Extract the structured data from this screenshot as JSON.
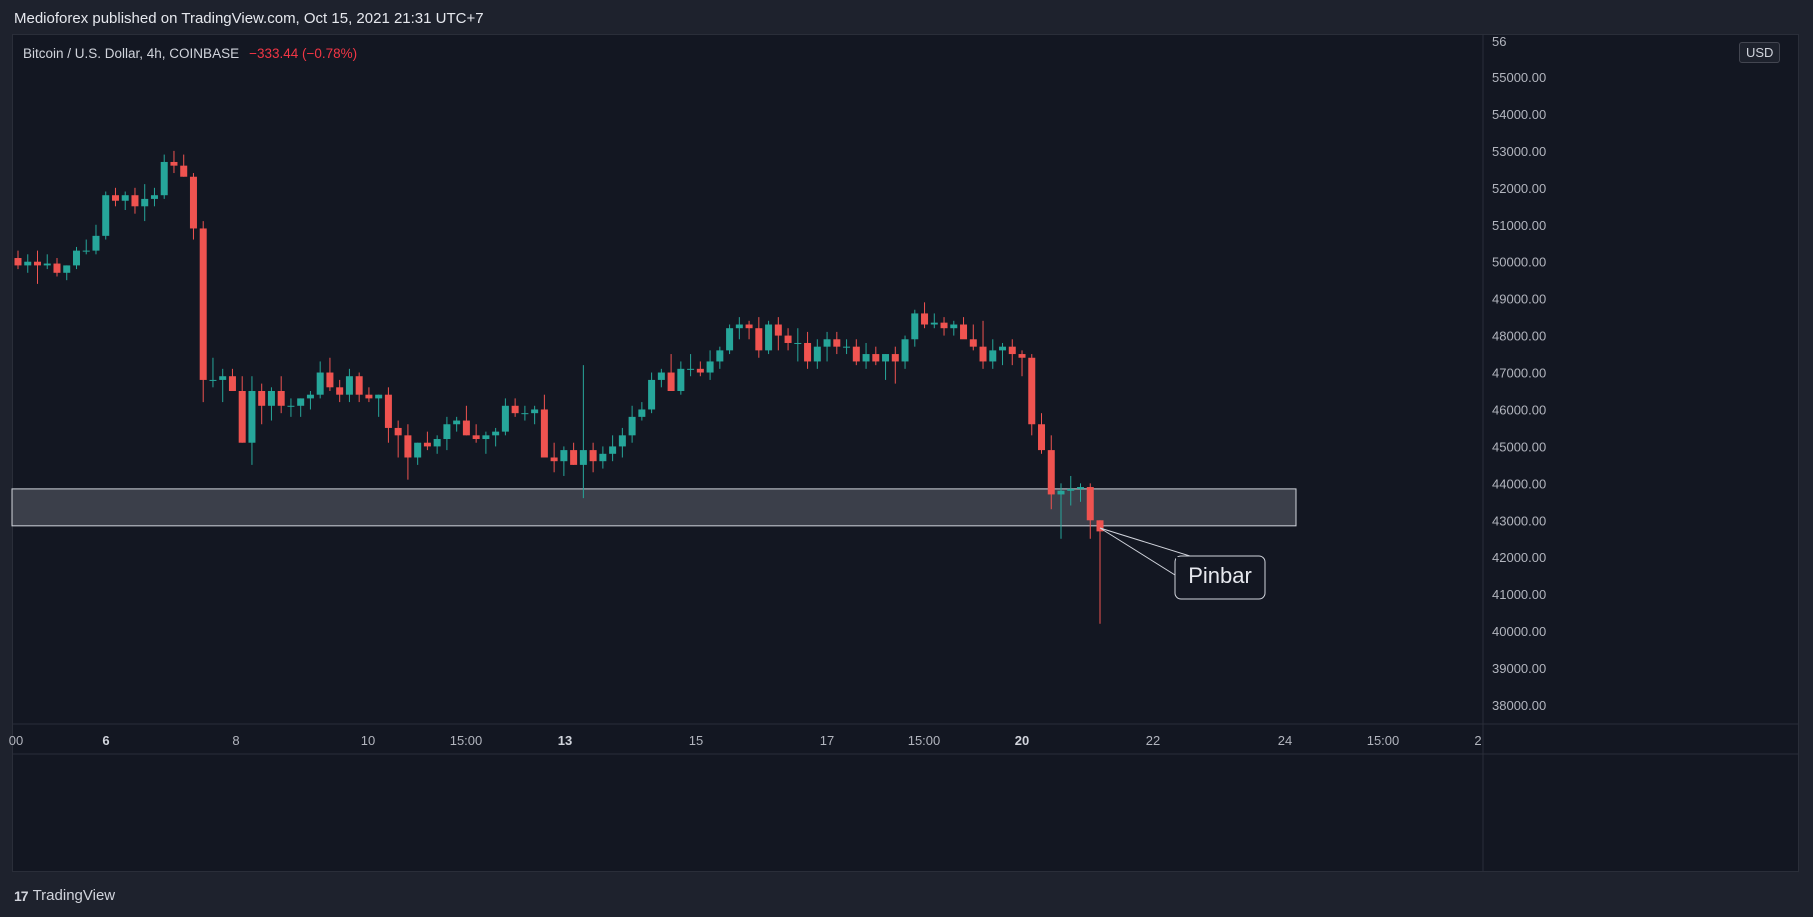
{
  "header": {
    "published_line": "Medioforex published on TradingView.com, Oct 15, 2021 21:31 UTC+7"
  },
  "symbol": {
    "name": "Bitcoin / U.S. Dollar, 4h, COINBASE",
    "change": "−333.44 (−0.78%)"
  },
  "currency_badge": "USD",
  "footer": {
    "brand": "TradingView"
  },
  "colors": {
    "up": "#26a69a",
    "down": "#ef5350",
    "background": "#131722",
    "zone_fill": "#434651"
  },
  "annotation": {
    "label": "Pinbar"
  },
  "chart_data": {
    "type": "candlestick",
    "symbol": "BTCUSD",
    "interval": "4h",
    "y_axis": {
      "ticks": [
        "55000.00",
        "54000.00",
        "53000.00",
        "52000.00",
        "51000.00",
        "50000.00",
        "49000.00",
        "48000.00",
        "47000.00",
        "46000.00",
        "45000.00",
        "44000.00",
        "43000.00",
        "42000.00",
        "41000.00",
        "40000.00",
        "39000.00",
        "38000.00"
      ],
      "tick_values": [
        55000,
        54000,
        53000,
        52000,
        51000,
        50000,
        49000,
        48000,
        47000,
        46000,
        45000,
        44000,
        43000,
        42000,
        41000,
        40000,
        39000,
        38000
      ],
      "top_partial_label": "56",
      "range": [
        37400,
        56400
      ]
    },
    "x_axis": {
      "ticks": [
        {
          "label": "00",
          "bold": false
        },
        {
          "label": "6",
          "bold": true
        },
        {
          "label": "8",
          "bold": false
        },
        {
          "label": "10",
          "bold": false
        },
        {
          "label": "15:00",
          "bold": false
        },
        {
          "label": "13",
          "bold": true
        },
        {
          "label": "15",
          "bold": false
        },
        {
          "label": "17",
          "bold": false
        },
        {
          "label": "15:00",
          "bold": false
        },
        {
          "label": "20",
          "bold": true
        },
        {
          "label": "22",
          "bold": false
        },
        {
          "label": "24",
          "bold": false
        },
        {
          "label": "15:00",
          "bold": false
        },
        {
          "label": "2",
          "bold": false
        }
      ]
    },
    "zone": {
      "low": 42850,
      "high": 43850
    },
    "candles": [
      [
        50100,
        50300,
        49800,
        49900
      ],
      [
        49900,
        50200,
        49700,
        50000
      ],
      [
        50000,
        50300,
        49400,
        49900
      ],
      [
        49900,
        50200,
        49800,
        49950
      ],
      [
        49950,
        50100,
        49600,
        49700
      ],
      [
        49700,
        49900,
        49500,
        49900
      ],
      [
        49900,
        50400,
        49800,
        50300
      ],
      [
        50300,
        50600,
        50200,
        50300
      ],
      [
        50300,
        51000,
        50200,
        50700
      ],
      [
        50700,
        51900,
        50600,
        51800
      ],
      [
        51800,
        52000,
        51500,
        51650
      ],
      [
        51650,
        51900,
        51400,
        51800
      ],
      [
        51800,
        52000,
        51300,
        51500
      ],
      [
        51500,
        52100,
        51100,
        51700
      ],
      [
        51700,
        52000,
        51500,
        51800
      ],
      [
        51800,
        52900,
        51700,
        52700
      ],
      [
        52700,
        53000,
        52400,
        52600
      ],
      [
        52600,
        52900,
        52300,
        52300
      ],
      [
        52300,
        52400,
        50600,
        50900
      ],
      [
        50900,
        51100,
        46200,
        46800
      ],
      [
        46800,
        47400,
        46600,
        46800
      ],
      [
        46800,
        47100,
        46200,
        46900
      ],
      [
        46900,
        47100,
        46600,
        46500
      ],
      [
        46500,
        46900,
        45100,
        45100
      ],
      [
        45100,
        46900,
        44500,
        46500
      ],
      [
        46500,
        46700,
        45600,
        46100
      ],
      [
        46100,
        46600,
        45700,
        46500
      ],
      [
        46500,
        46900,
        45900,
        46100
      ],
      [
        46100,
        46300,
        45800,
        46100
      ],
      [
        46100,
        46300,
        45800,
        46300
      ],
      [
        46300,
        46500,
        46000,
        46400
      ],
      [
        46400,
        47300,
        46300,
        47000
      ],
      [
        47000,
        47400,
        46500,
        46600
      ],
      [
        46600,
        46800,
        46200,
        46400
      ],
      [
        46400,
        47100,
        46200,
        46900
      ],
      [
        46900,
        47000,
        46200,
        46400
      ],
      [
        46400,
        46600,
        46200,
        46300
      ],
      [
        46300,
        46400,
        45800,
        46400
      ],
      [
        46400,
        46600,
        45100,
        45500
      ],
      [
        45500,
        45700,
        44700,
        45300
      ],
      [
        45300,
        45600,
        44100,
        44700
      ],
      [
        44700,
        45100,
        44500,
        45100
      ],
      [
        45100,
        45400,
        44900,
        45000
      ],
      [
        45000,
        45300,
        44800,
        45200
      ],
      [
        45200,
        45800,
        44900,
        45600
      ],
      [
        45600,
        45800,
        45400,
        45700
      ],
      [
        45700,
        46100,
        45300,
        45300
      ],
      [
        45300,
        45600,
        45100,
        45200
      ],
      [
        45200,
        45400,
        44800,
        45300
      ],
      [
        45300,
        45500,
        45000,
        45400
      ],
      [
        45400,
        46300,
        45300,
        46100
      ],
      [
        46100,
        46300,
        45800,
        45900
      ],
      [
        45900,
        46100,
        45700,
        45900
      ],
      [
        45900,
        46100,
        45600,
        46000
      ],
      [
        46000,
        46400,
        44700,
        44700
      ],
      [
        44700,
        45100,
        44300,
        44600
      ],
      [
        44600,
        45000,
        44200,
        44900
      ],
      [
        44900,
        45100,
        44500,
        44500
      ],
      [
        44500,
        47200,
        43600,
        44900
      ],
      [
        44900,
        45100,
        44300,
        44600
      ],
      [
        44600,
        45000,
        44400,
        44800
      ],
      [
        44800,
        45300,
        44600,
        45000
      ],
      [
        45000,
        45500,
        44700,
        45300
      ],
      [
        45300,
        46100,
        45100,
        45800
      ],
      [
        45800,
        46200,
        45700,
        46000
      ],
      [
        46000,
        47000,
        45900,
        46800
      ],
      [
        46800,
        47100,
        46600,
        47000
      ],
      [
        47000,
        47500,
        46500,
        46500
      ],
      [
        46500,
        47300,
        46400,
        47100
      ],
      [
        47100,
        47500,
        46900,
        47100
      ],
      [
        47100,
        47300,
        46900,
        47000
      ],
      [
        47000,
        47600,
        46800,
        47300
      ],
      [
        47300,
        47700,
        47100,
        47600
      ],
      [
        47600,
        48300,
        47500,
        48200
      ],
      [
        48200,
        48500,
        47900,
        48300
      ],
      [
        48300,
        48400,
        47900,
        48200
      ],
      [
        48200,
        48500,
        47400,
        47600
      ],
      [
        47600,
        48400,
        47500,
        48300
      ],
      [
        48300,
        48500,
        47600,
        48000
      ],
      [
        48000,
        48200,
        47600,
        47800
      ],
      [
        47800,
        48200,
        47300,
        47800
      ],
      [
        47800,
        48100,
        47100,
        47300
      ],
      [
        47300,
        47900,
        47100,
        47700
      ],
      [
        47700,
        48100,
        47300,
        47900
      ],
      [
        47900,
        48100,
        47500,
        47700
      ],
      [
        47700,
        47900,
        47500,
        47700
      ],
      [
        47700,
        47900,
        47200,
        47300
      ],
      [
        47300,
        47800,
        47100,
        47500
      ],
      [
        47500,
        47700,
        47200,
        47300
      ],
      [
        47300,
        47500,
        46800,
        47500
      ],
      [
        47500,
        47700,
        46700,
        47300
      ],
      [
        47300,
        48000,
        47100,
        47900
      ],
      [
        47900,
        48700,
        47700,
        48600
      ],
      [
        48600,
        48900,
        48200,
        48300
      ],
      [
        48300,
        48600,
        48200,
        48350
      ],
      [
        48350,
        48500,
        48000,
        48200
      ],
      [
        48200,
        48400,
        48000,
        48300
      ],
      [
        48300,
        48500,
        48000,
        47900
      ],
      [
        47900,
        48300,
        47600,
        47700
      ],
      [
        47700,
        48400,
        47100,
        47300
      ],
      [
        47300,
        47900,
        47100,
        47600
      ],
      [
        47600,
        47800,
        47200,
        47700
      ],
      [
        47700,
        47900,
        47200,
        47500
      ],
      [
        47500,
        47600,
        46900,
        47400
      ],
      [
        47400,
        47500,
        45300,
        45600
      ],
      [
        45600,
        45900,
        44800,
        44900
      ],
      [
        44900,
        45300,
        43300,
        43700
      ],
      [
        43700,
        44000,
        42500,
        43800
      ],
      [
        43800,
        44200,
        43400,
        43850
      ],
      [
        43850,
        44000,
        43500,
        43900
      ],
      [
        43900,
        44000,
        42500,
        43000
      ],
      [
        43000,
        43000,
        40200,
        42700
      ]
    ]
  }
}
